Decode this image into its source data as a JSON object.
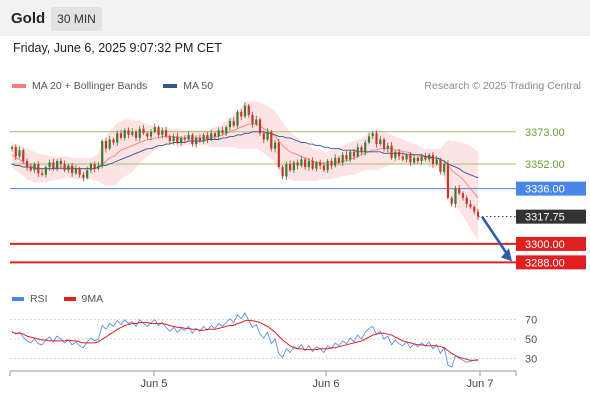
{
  "header": {
    "instrument": "Gold",
    "timeframe": "30 MIN",
    "datetime": "Friday, June 6, 2025 9:07:32 PM CET"
  },
  "legend": {
    "items": [
      {
        "label": "MA 20 + Bollinger Bands",
        "color": "#f08080"
      },
      {
        "label": "MA 50",
        "color": "#2f5597"
      }
    ],
    "credit": "Research © 2025 Trading Central"
  },
  "colors": {
    "up": "#3a7d32",
    "down": "#c0392b",
    "bands": "#fde3e3",
    "pivot": "#4a86e8",
    "support": "#e02020",
    "resistance": "#9dc26a",
    "current": "#333333",
    "arrow": "#2a5ea8"
  },
  "chart_data": [
    {
      "type": "line",
      "name": "price",
      "ylim": [
        3270,
        3395
      ],
      "x_ticks": [
        "Jun 5",
        "Jun 6",
        "Jun 7"
      ],
      "close": [
        3363,
        3357,
        3361,
        3354,
        3350,
        3348,
        3352,
        3346,
        3345,
        3350,
        3353,
        3349,
        3354,
        3352,
        3348,
        3351,
        3346,
        3349,
        3345,
        3343,
        3348,
        3352,
        3349,
        3351,
        3367,
        3362,
        3368,
        3366,
        3372,
        3369,
        3374,
        3371,
        3373,
        3369,
        3375,
        3372,
        3370,
        3373,
        3376,
        3371,
        3374,
        3370,
        3367,
        3370,
        3366,
        3369,
        3368,
        3371,
        3365,
        3369,
        3367,
        3371,
        3368,
        3372,
        3370,
        3374,
        3372,
        3376,
        3380,
        3377,
        3386,
        3383,
        3390,
        3384,
        3378,
        3381,
        3372,
        3368,
        3373,
        3362,
        3366,
        3350,
        3344,
        3352,
        3348,
        3353,
        3351,
        3355,
        3350,
        3354,
        3349,
        3353,
        3351,
        3348,
        3354,
        3351,
        3356,
        3353,
        3358,
        3355,
        3360,
        3357,
        3363,
        3360,
        3366,
        3370,
        3372,
        3365,
        3368,
        3362,
        3364,
        3356,
        3360,
        3357,
        3355,
        3358,
        3353,
        3356,
        3354,
        3357,
        3355,
        3358,
        3352,
        3355,
        3347,
        3352,
        3330,
        3326,
        3336,
        3333,
        3330,
        3326,
        3324,
        3321,
        3318
      ],
      "ma20": [
        3358,
        3356,
        3355,
        3353,
        3352,
        3351,
        3350,
        3349,
        3349,
        3349,
        3349,
        3349,
        3350,
        3350,
        3350,
        3350,
        3350,
        3349,
        3349,
        3349,
        3349,
        3349,
        3349,
        3350,
        3352,
        3354,
        3356,
        3357,
        3359,
        3361,
        3362,
        3363,
        3364,
        3365,
        3366,
        3367,
        3368,
        3368,
        3369,
        3369,
        3370,
        3370,
        3370,
        3370,
        3369,
        3369,
        3369,
        3369,
        3369,
        3369,
        3369,
        3369,
        3369,
        3369,
        3370,
        3370,
        3371,
        3372,
        3373,
        3374,
        3375,
        3376,
        3377,
        3378,
        3378,
        3378,
        3377,
        3375,
        3374,
        3372,
        3370,
        3367,
        3364,
        3362,
        3360,
        3359,
        3358,
        3357,
        3356,
        3355,
        3354,
        3353,
        3353,
        3352,
        3352,
        3352,
        3353,
        3353,
        3354,
        3354,
        3355,
        3356,
        3357,
        3358,
        3359,
        3360,
        3361,
        3361,
        3362,
        3362,
        3362,
        3362,
        3361,
        3361,
        3360,
        3360,
        3359,
        3358,
        3358,
        3357,
        3357,
        3356,
        3356,
        3356,
        3355,
        3354,
        3351,
        3348,
        3346,
        3344,
        3342,
        3339,
        3336,
        3333,
        3330
      ],
      "bb_upper": [
        3366,
        3365,
        3364,
        3363,
        3362,
        3361,
        3360,
        3359,
        3358,
        3358,
        3357,
        3357,
        3357,
        3357,
        3357,
        3357,
        3356,
        3356,
        3356,
        3356,
        3356,
        3356,
        3357,
        3359,
        3365,
        3370,
        3374,
        3376,
        3379,
        3380,
        3381,
        3381,
        3381,
        3380,
        3380,
        3379,
        3378,
        3377,
        3377,
        3376,
        3376,
        3376,
        3375,
        3375,
        3375,
        3375,
        3374,
        3374,
        3374,
        3374,
        3374,
        3374,
        3374,
        3375,
        3376,
        3377,
        3378,
        3380,
        3382,
        3384,
        3387,
        3389,
        3392,
        3393,
        3393,
        3393,
        3392,
        3391,
        3390,
        3388,
        3386,
        3383,
        3379,
        3376,
        3373,
        3371,
        3369,
        3367,
        3365,
        3364,
        3362,
        3361,
        3361,
        3360,
        3360,
        3361,
        3362,
        3363,
        3364,
        3365,
        3366,
        3367,
        3368,
        3369,
        3370,
        3372,
        3374,
        3374,
        3374,
        3373,
        3372,
        3371,
        3370,
        3369,
        3368,
        3367,
        3366,
        3365,
        3364,
        3363,
        3362,
        3362,
        3362,
        3362,
        3362,
        3365,
        3368,
        3367,
        3367,
        3366,
        3366,
        3365,
        3364,
        3362,
        3360
      ],
      "bb_lower": [
        3350,
        3348,
        3346,
        3344,
        3342,
        3341,
        3340,
        3340,
        3340,
        3340,
        3341,
        3341,
        3342,
        3342,
        3343,
        3343,
        3343,
        3342,
        3342,
        3342,
        3342,
        3342,
        3341,
        3341,
        3339,
        3338,
        3338,
        3338,
        3339,
        3342,
        3344,
        3345,
        3347,
        3350,
        3352,
        3355,
        3357,
        3359,
        3361,
        3362,
        3363,
        3364,
        3365,
        3365,
        3363,
        3363,
        3364,
        3364,
        3364,
        3364,
        3364,
        3364,
        3364,
        3363,
        3363,
        3363,
        3363,
        3363,
        3363,
        3363,
        3362,
        3362,
        3362,
        3362,
        3362,
        3362,
        3361,
        3359,
        3357,
        3355,
        3353,
        3349,
        3345,
        3343,
        3342,
        3341,
        3341,
        3341,
        3341,
        3341,
        3341,
        3341,
        3342,
        3342,
        3342,
        3342,
        3343,
        3343,
        3344,
        3344,
        3345,
        3345,
        3346,
        3347,
        3348,
        3348,
        3348,
        3348,
        3349,
        3350,
        3351,
        3352,
        3352,
        3353,
        3352,
        3353,
        3352,
        3351,
        3352,
        3351,
        3352,
        3350,
        3350,
        3350,
        3348,
        3343,
        3334,
        3329,
        3325,
        3322,
        3318,
        3314,
        3310,
        3306,
        3302
      ],
      "ma50": [
        3352,
        3351,
        3351,
        3350,
        3350,
        3350,
        3349,
        3349,
        3349,
        3349,
        3349,
        3349,
        3349,
        3349,
        3349,
        3349,
        3349,
        3349,
        3349,
        3349,
        3349,
        3349,
        3349,
        3350,
        3351,
        3351,
        3352,
        3353,
        3354,
        3355,
        3356,
        3357,
        3358,
        3359,
        3360,
        3361,
        3362,
        3362,
        3363,
        3364,
        3364,
        3365,
        3365,
        3366,
        3366,
        3366,
        3366,
        3367,
        3367,
        3367,
        3367,
        3367,
        3368,
        3368,
        3368,
        3368,
        3369,
        3369,
        3370,
        3370,
        3371,
        3371,
        3372,
        3372,
        3373,
        3373,
        3373,
        3373,
        3372,
        3372,
        3371,
        3370,
        3370,
        3369,
        3369,
        3368,
        3367,
        3366,
        3366,
        3365,
        3365,
        3364,
        3364,
        3363,
        3363,
        3362,
        3362,
        3362,
        3361,
        3361,
        3361,
        3361,
        3360,
        3360,
        3360,
        3360,
        3360,
        3360,
        3360,
        3359,
        3359,
        3359,
        3359,
        3359,
        3359,
        3358,
        3358,
        3358,
        3358,
        3358,
        3357,
        3357,
        3356,
        3356,
        3355,
        3354,
        3352,
        3351,
        3350,
        3349,
        3347,
        3346,
        3345,
        3344,
        3343
      ],
      "levels": [
        {
          "label": "3373.00",
          "value": 3373,
          "kind": "resistance"
        },
        {
          "label": "3352.00",
          "value": 3352,
          "kind": "resistance"
        },
        {
          "label": "3336.00",
          "value": 3336,
          "kind": "pivot"
        },
        {
          "label": "3317.75",
          "value": 3317.75,
          "kind": "current"
        },
        {
          "label": "3300.00",
          "value": 3300,
          "kind": "support"
        },
        {
          "label": "3288.00",
          "value": 3288,
          "kind": "support"
        }
      ],
      "forecast_arrow": {
        "from": 3317.75,
        "to": 3288
      }
    },
    {
      "type": "line",
      "name": "oscillator",
      "legend": [
        {
          "label": "RSI",
          "color": "#4a86e8"
        },
        {
          "label": "9MA",
          "color": "#e02020"
        }
      ],
      "ylim": [
        20,
        80
      ],
      "y_ticks": [
        "70",
        "50",
        "30"
      ],
      "rsi": [
        58,
        55,
        57,
        52,
        48,
        46,
        50,
        45,
        44,
        49,
        52,
        47,
        53,
        50,
        46,
        49,
        44,
        47,
        43,
        41,
        47,
        51,
        48,
        50,
        64,
        60,
        66,
        63,
        69,
        65,
        70,
        66,
        68,
        63,
        70,
        66,
        63,
        67,
        70,
        64,
        67,
        62,
        58,
        62,
        57,
        61,
        59,
        63,
        56,
        61,
        58,
        63,
        59,
        64,
        61,
        66,
        63,
        67,
        71,
        67,
        75,
        71,
        77,
        69,
        62,
        65,
        55,
        51,
        57,
        45,
        50,
        35,
        31,
        40,
        36,
        42,
        40,
        44,
        38,
        43,
        37,
        42,
        40,
        36,
        43,
        40,
        46,
        43,
        48,
        45,
        51,
        47,
        54,
        50,
        57,
        61,
        63,
        55,
        58,
        50,
        53,
        44,
        49,
        45,
        43,
        47,
        41,
        45,
        42,
        46,
        43,
        47,
        40,
        44,
        35,
        41,
        23,
        21,
        33,
        30,
        28,
        26,
        27,
        28,
        29
      ],
      "ma9": [
        57,
        56,
        56,
        55,
        53,
        52,
        51,
        50,
        49,
        49,
        48,
        48,
        48,
        48,
        48,
        49,
        48,
        48,
        47,
        46,
        46,
        46,
        46,
        47,
        50,
        52,
        55,
        57,
        60,
        62,
        64,
        65,
        66,
        66,
        67,
        67,
        67,
        66,
        66,
        66,
        66,
        65,
        64,
        63,
        62,
        62,
        61,
        61,
        60,
        60,
        59,
        59,
        60,
        60,
        60,
        61,
        62,
        63,
        64,
        64,
        66,
        67,
        69,
        69,
        69,
        68,
        67,
        65,
        63,
        60,
        57,
        53,
        49,
        46,
        43,
        41,
        40,
        40,
        39,
        39,
        39,
        39,
        40,
        40,
        40,
        41,
        41,
        42,
        43,
        44,
        45,
        46,
        47,
        48,
        50,
        52,
        54,
        55,
        56,
        56,
        55,
        54,
        52,
        50,
        48,
        47,
        46,
        45,
        44,
        44,
        43,
        43,
        43,
        43,
        42,
        41,
        38,
        35,
        33,
        31,
        30,
        29,
        28,
        28,
        28
      ]
    }
  ]
}
